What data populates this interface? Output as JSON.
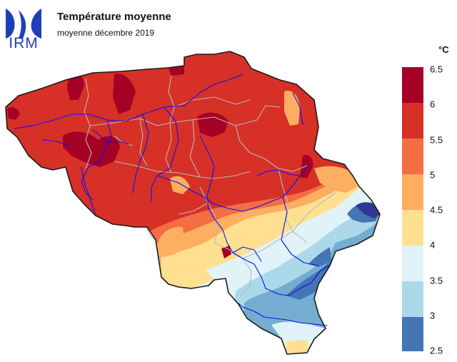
{
  "header": {
    "logo_text": "IRM",
    "title": "Température moyenne",
    "subtitle": "moyenne décembre 2019"
  },
  "legend": {
    "unit": "°C",
    "ticks": [
      "6.5",
      "6",
      "5.5",
      "5",
      "4.5",
      "4",
      "3.5",
      "3",
      "2.5"
    ],
    "bands": [
      {
        "range": "6-6.5",
        "color": "#a50026"
      },
      {
        "range": "5.5-6",
        "color": "#d73027"
      },
      {
        "range": "5-5.5",
        "color": "#f46d43"
      },
      {
        "range": "4.5-5",
        "color": "#fdae61"
      },
      {
        "range": "4-4.5",
        "color": "#fee090"
      },
      {
        "range": "3.5-4",
        "color": "#e0f3f8"
      },
      {
        "range": "3-3.5",
        "color": "#abd9e9"
      },
      {
        "range": "2.5-3",
        "color": "#4575b4"
      }
    ]
  },
  "colors": {
    "warmest": "#a50026",
    "warm": "#d73027",
    "mild": "#f46d43",
    "cool_orange": "#fdae61",
    "yellow": "#fee090",
    "pale": "#e0f3f8",
    "light_blue": "#abd9e9",
    "mid_blue": "#74add1",
    "dark_blue": "#4575b4",
    "coldest": "#313695",
    "rivers": "#1010ee",
    "provinces": "#b8b8b8",
    "border": "#1a1a1a",
    "logo": "#1f3fb8"
  },
  "icons": {
    "logo": "irm-logo-icon"
  }
}
